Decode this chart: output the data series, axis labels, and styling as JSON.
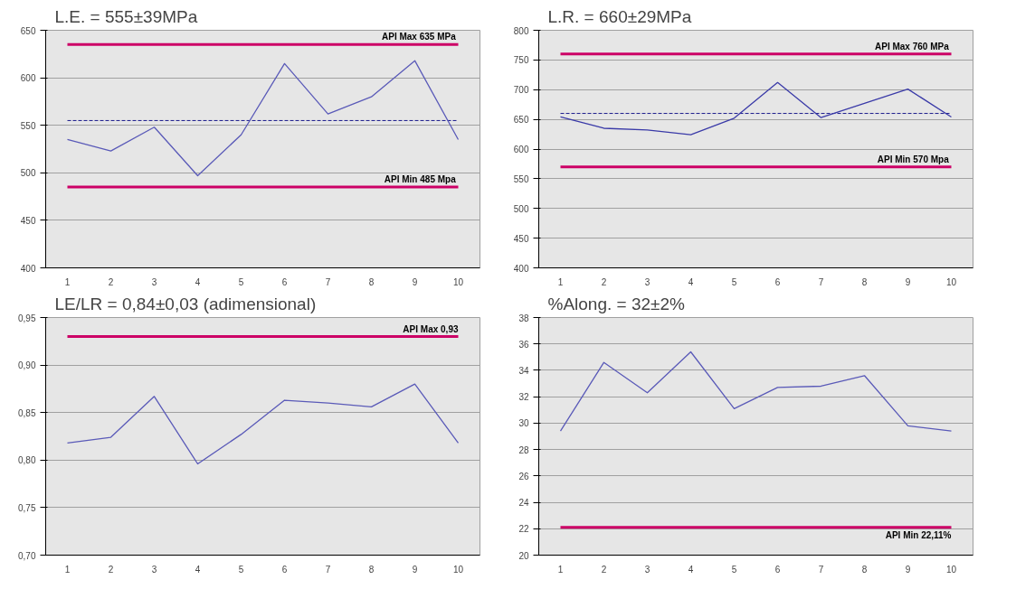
{
  "chart_data": [
    {
      "type": "line",
      "title": "L.E. = 555±39MPa",
      "categories": [
        "1",
        "2",
        "3",
        "4",
        "5",
        "6",
        "7",
        "8",
        "9",
        "10"
      ],
      "series": [
        {
          "color": "#5a5ab8",
          "values": [
            535,
            523,
            548,
            497,
            540,
            615,
            562,
            580,
            618,
            535
          ]
        }
      ],
      "ylim": [
        400,
        650
      ],
      "yticks": [
        400,
        450,
        500,
        550,
        600,
        650
      ],
      "grid": "y",
      "ref_lines": [
        {
          "axis": "y",
          "value": 635,
          "label": "API Max 635  MPa",
          "color": "#cc0066"
        },
        {
          "axis": "y",
          "value": 485,
          "label": "API Min 485  Mpa",
          "color": "#cc0066"
        },
        {
          "axis": "y",
          "value": 555,
          "color": "#1a1a8c",
          "line_style": "dashed"
        }
      ]
    },
    {
      "type": "line",
      "title": "L.R. = 660±29MPa",
      "categories": [
        "1",
        "2",
        "3",
        "4",
        "5",
        "6",
        "7",
        "8",
        "9",
        "10"
      ],
      "series": [
        {
          "color": "#3a3aa8",
          "values": [
            654,
            635,
            632,
            624,
            652,
            712,
            653,
            677,
            701,
            654
          ]
        }
      ],
      "ylim": [
        400,
        800
      ],
      "yticks": [
        400,
        450,
        500,
        550,
        600,
        650,
        700,
        750,
        800
      ],
      "grid": "y",
      "ref_lines": [
        {
          "axis": "y",
          "value": 760,
          "label": "API Max 760  MPa",
          "color": "#cc0066"
        },
        {
          "axis": "y",
          "value": 570,
          "label": "API Min 570  Mpa",
          "color": "#cc0066"
        },
        {
          "axis": "y",
          "value": 660,
          "color": "#1a1a8c",
          "line_style": "dashed"
        }
      ]
    },
    {
      "type": "line",
      "title": "LE/LR = 0,84±0,03 (adimensional)",
      "categories": [
        "1",
        "2",
        "3",
        "4",
        "5",
        "6",
        "7",
        "8",
        "9",
        "10"
      ],
      "series": [
        {
          "color": "#5a5ab8",
          "values": [
            0.818,
            0.824,
            0.867,
            0.796,
            0.827,
            0.863,
            0.86,
            0.856,
            0.88,
            0.818
          ]
        }
      ],
      "ylim": [
        0.7,
        0.95
      ],
      "yticks": [
        {
          "value": 0.7,
          "label": "0,70"
        },
        {
          "value": 0.75,
          "label": "0,75"
        },
        {
          "value": 0.8,
          "label": "0,80"
        },
        {
          "value": 0.85,
          "label": "0,85"
        },
        {
          "value": 0.9,
          "label": "0,90"
        },
        {
          "value": 0.95,
          "label": "0,95"
        }
      ],
      "grid": "y",
      "ref_lines": [
        {
          "axis": "y",
          "value": 0.93,
          "label": "API Max 0,93",
          "color": "#cc0066"
        }
      ]
    },
    {
      "type": "line",
      "title": "%Along. = 32±2%",
      "categories": [
        "1",
        "2",
        "3",
        "4",
        "5",
        "6",
        "7",
        "8",
        "9",
        "10"
      ],
      "series": [
        {
          "color": "#5a5ab8",
          "values": [
            29.4,
            34.6,
            32.3,
            35.4,
            31.1,
            32.7,
            32.8,
            33.6,
            29.8,
            29.4
          ]
        }
      ],
      "ylim": [
        20,
        38
      ],
      "yticks": [
        20,
        22,
        24,
        26,
        28,
        30,
        32,
        34,
        36,
        38
      ],
      "grid": "y",
      "ref_lines": [
        {
          "axis": "y",
          "value": 22.11,
          "label": "API Min 22,11%",
          "color": "#cc0066"
        }
      ]
    }
  ]
}
